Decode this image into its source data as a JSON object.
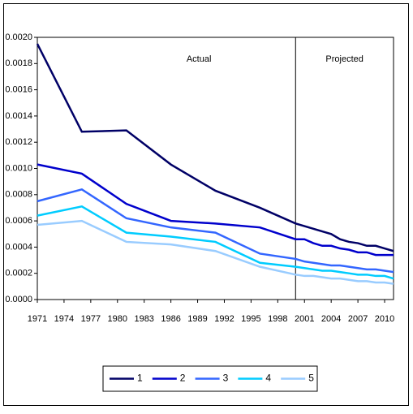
{
  "chart_data": {
    "type": "line",
    "annotations": [
      "Actual",
      "Projected"
    ],
    "divider_at": 2000,
    "x": [
      1971,
      1976,
      1981,
      1986,
      1991,
      1996,
      2000,
      2001,
      2002,
      2003,
      2004,
      2005,
      2006,
      2007,
      2008,
      2009,
      2010,
      2011
    ],
    "xlim": [
      1971,
      2011
    ],
    "xticks": [
      1971,
      1974,
      1977,
      1980,
      1983,
      1986,
      1989,
      1992,
      1995,
      1998,
      2001,
      2004,
      2007,
      2010
    ],
    "ylim": [
      0,
      0.002
    ],
    "yticks": [
      {
        "value": 0,
        "label": "0.0000"
      },
      {
        "value": 0.0002,
        "label": "0.0002"
      },
      {
        "value": 0.0004,
        "label": "0.0004"
      },
      {
        "value": 0.0006,
        "label": "0.0006"
      },
      {
        "value": 0.0008,
        "label": "0.0008"
      },
      {
        "value": 0.001,
        "label": "0.0010"
      },
      {
        "value": 0.0012,
        "label": "0.0012"
      },
      {
        "value": 0.0014,
        "label": "0.0014"
      },
      {
        "value": 0.0016,
        "label": "0.0016"
      },
      {
        "value": 0.0018,
        "label": "0.0018"
      },
      {
        "value": 0.002,
        "label": "0.0020"
      }
    ],
    "series": [
      {
        "name": "1",
        "color": "#000066",
        "values": [
          0.00195,
          0.00128,
          0.00129,
          0.00103,
          0.00083,
          0.0007,
          0.00058,
          0.00056,
          0.00054,
          0.00052,
          0.0005,
          0.00046,
          0.00044,
          0.00043,
          0.00041,
          0.00041,
          0.00039,
          0.00037
        ]
      },
      {
        "name": "2",
        "color": "#0000cc",
        "values": [
          0.00103,
          0.00096,
          0.00073,
          0.0006,
          0.00058,
          0.00055,
          0.00046,
          0.00046,
          0.00043,
          0.00041,
          0.00041,
          0.00039,
          0.00038,
          0.00036,
          0.00036,
          0.00034,
          0.00034,
          0.00034
        ]
      },
      {
        "name": "3",
        "color": "#3366ff",
        "values": [
          0.00075,
          0.00084,
          0.00062,
          0.00055,
          0.00051,
          0.00035,
          0.00031,
          0.00029,
          0.00028,
          0.00027,
          0.00026,
          0.00026,
          0.00025,
          0.00024,
          0.00023,
          0.00023,
          0.00022,
          0.00021
        ]
      },
      {
        "name": "4",
        "color": "#00ccff",
        "values": [
          0.00064,
          0.00071,
          0.00051,
          0.00048,
          0.00044,
          0.00028,
          0.00025,
          0.00024,
          0.00023,
          0.00022,
          0.00022,
          0.00021,
          0.0002,
          0.00019,
          0.00019,
          0.00018,
          0.00018,
          0.00016
        ]
      },
      {
        "name": "5",
        "color": "#99ccff",
        "values": [
          0.00057,
          0.0006,
          0.00044,
          0.00042,
          0.00037,
          0.00025,
          0.00019,
          0.00018,
          0.00018,
          0.00017,
          0.00016,
          0.00016,
          0.00015,
          0.00014,
          0.00014,
          0.00013,
          0.00013,
          0.00012
        ]
      }
    ],
    "legend": "bottom"
  }
}
